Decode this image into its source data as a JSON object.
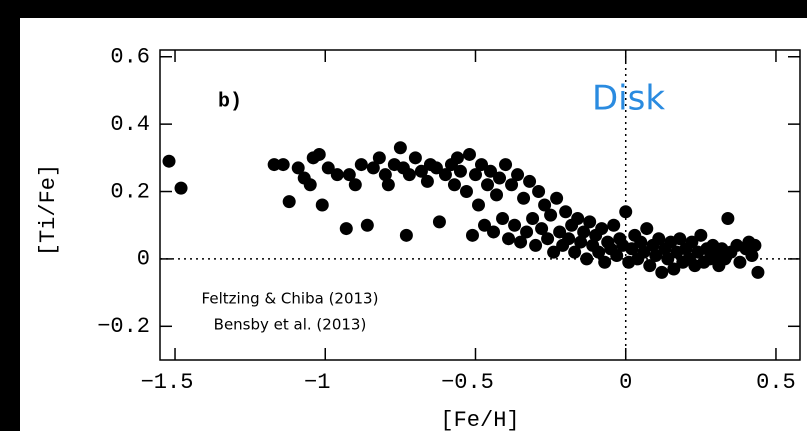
{
  "chart_data": {
    "type": "scatter",
    "xlabel": "[Fe/H]",
    "ylabel": "[Ti/Fe]",
    "panel_label": "b)",
    "region_label": "Disk",
    "sources": [
      "Feltzing & Chiba (2013)",
      "Bensby et al. (2013)"
    ],
    "xlim": [
      -1.55,
      0.58
    ],
    "ylim": [
      -0.3,
      0.62
    ],
    "xticks": [
      {
        "value": -1.5,
        "label": "−1.5"
      },
      {
        "value": -1,
        "label": "−1"
      },
      {
        "value": -0.5,
        "label": "−0.5"
      },
      0,
      0.5
    ],
    "yticks": [
      {
        "value": -0.2,
        "label": "−0.2"
      },
      0,
      0.2,
      0.4,
      0.6
    ],
    "hlines": [
      0
    ],
    "vlines": [
      0
    ],
    "grid": false,
    "series": [
      {
        "color": "#000000",
        "x": [
          -1.52,
          -1.48,
          -1.17,
          -1.14,
          -1.12,
          -1.09,
          -1.07,
          -1.05,
          -1.04,
          -1.02,
          -1.01,
          -0.99,
          -0.96,
          -0.93,
          -0.92,
          -0.9,
          -0.88,
          -0.86,
          -0.84,
          -0.82,
          -0.8,
          -0.79,
          -0.77,
          -0.75,
          -0.74,
          -0.73,
          -0.72,
          -0.7,
          -0.68,
          -0.66,
          -0.65,
          -0.63,
          -0.62,
          -0.6,
          -0.58,
          -0.57,
          -0.56,
          -0.55,
          -0.53,
          -0.52,
          -0.51,
          -0.5,
          -0.49,
          -0.48,
          -0.47,
          -0.46,
          -0.45,
          -0.44,
          -0.43,
          -0.42,
          -0.41,
          -0.4,
          -0.39,
          -0.38,
          -0.37,
          -0.36,
          -0.35,
          -0.34,
          -0.33,
          -0.32,
          -0.31,
          -0.3,
          -0.29,
          -0.28,
          -0.27,
          -0.26,
          -0.25,
          -0.24,
          -0.23,
          -0.22,
          -0.21,
          -0.2,
          -0.19,
          -0.18,
          -0.17,
          -0.16,
          -0.15,
          -0.14,
          -0.13,
          -0.12,
          -0.11,
          -0.1,
          -0.09,
          -0.08,
          -0.07,
          -0.06,
          -0.05,
          -0.04,
          -0.03,
          -0.02,
          -0.01,
          0,
          0.01,
          0.02,
          0.03,
          0.04,
          0.05,
          0.06,
          0.07,
          0.08,
          0.09,
          0.1,
          0.11,
          0.12,
          0.13,
          0.14,
          0.15,
          0.16,
          0.17,
          0.18,
          0.19,
          0.2,
          0.21,
          0.22,
          0.23,
          0.24,
          0.25,
          0.26,
          0.27,
          0.28,
          0.29,
          0.3,
          0.31,
          0.32,
          0.33,
          0.34,
          0.35,
          0.37,
          0.38,
          0.4,
          0.41,
          0.42,
          0.43,
          0.44
        ],
        "y": [
          0.29,
          0.21,
          0.28,
          0.28,
          0.17,
          0.27,
          0.24,
          0.22,
          0.3,
          0.31,
          0.16,
          0.27,
          0.25,
          0.09,
          0.25,
          0.22,
          0.28,
          0.1,
          0.27,
          0.3,
          0.25,
          0.22,
          0.28,
          0.33,
          0.27,
          0.07,
          0.25,
          0.3,
          0.26,
          0.23,
          0.28,
          0.27,
          0.11,
          0.25,
          0.28,
          0.22,
          0.3,
          0.26,
          0.2,
          0.31,
          0.07,
          0.25,
          0.16,
          0.28,
          0.1,
          0.22,
          0.26,
          0.08,
          0.19,
          0.24,
          0.12,
          0.28,
          0.06,
          0.22,
          0.1,
          0.25,
          0.05,
          0.18,
          0.08,
          0.23,
          0.12,
          0.04,
          0.2,
          0.09,
          0.16,
          0.06,
          0.13,
          0.02,
          0.18,
          0.08,
          0.04,
          0.14,
          0.06,
          0.1,
          0.02,
          0.12,
          0.05,
          0.08,
          0,
          0.11,
          0.04,
          0.07,
          0.02,
          0.09,
          -0.01,
          0.05,
          0.03,
          0.1,
          0.01,
          0.06,
          0.04,
          0.14,
          -0.01,
          0.03,
          0.07,
          0,
          0.05,
          0.02,
          0.09,
          -0.02,
          0.04,
          0.01,
          0.06,
          -0.04,
          0.03,
          0,
          0.05,
          -0.03,
          0.02,
          0.06,
          -0.01,
          0.03,
          0,
          0.05,
          -0.02,
          0.02,
          0.07,
          -0.01,
          0.03,
          0,
          0.04,
          0.01,
          -0.02,
          0.03,
          0,
          0.12,
          0.02,
          0.04,
          -0.01,
          0.03,
          0.05,
          0.01,
          0.04,
          -0.04
        ]
      }
    ]
  }
}
